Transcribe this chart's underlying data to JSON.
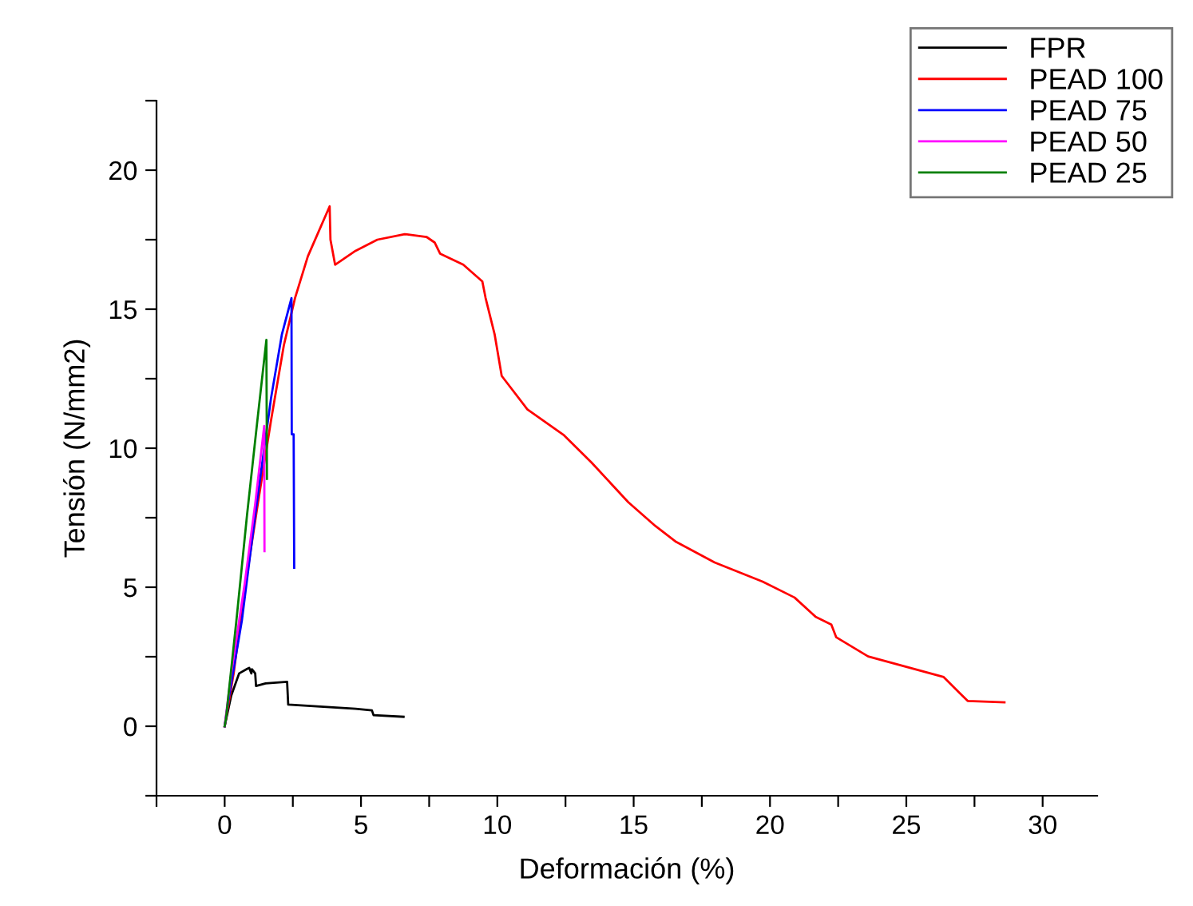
{
  "chart_data": {
    "type": "line",
    "xlabel": "Deformación (%)",
    "ylabel": "Tensión (N/mm2)",
    "xlim": [
      -2.5,
      32
    ],
    "ylim": [
      -2.5,
      22.5
    ],
    "xticks": [
      {
        "value": -2.5,
        "label": null
      },
      0,
      {
        "value": 2.5,
        "label": null
      },
      5,
      {
        "value": 7.5,
        "label": null
      },
      10,
      {
        "value": 12.5,
        "label": null
      },
      15,
      {
        "value": 17.5,
        "label": null
      },
      20,
      {
        "value": 22.5,
        "label": null
      },
      25,
      {
        "value": 27.5,
        "label": null
      },
      30
    ],
    "yticks": [
      {
        "value": -2.5,
        "label": null
      },
      0,
      {
        "value": 2.5,
        "label": null
      },
      5,
      {
        "value": 7.5,
        "label": null
      },
      10,
      {
        "value": 12.5,
        "label": null
      },
      15,
      {
        "value": 17.5,
        "label": null
      },
      20,
      {
        "value": 22.5,
        "label": null
      }
    ],
    "grid": false,
    "legend": "top right",
    "marker": "none",
    "line_style": "solid",
    "series": [
      {
        "name": "FPR",
        "color": "#000000",
        "x": [
          0,
          0.24,
          0.53,
          0.82,
          0.9,
          0.98,
          1.0,
          1.12,
          1.15,
          1.5,
          2.29,
          2.33,
          4.8,
          5.4,
          5.46,
          6.56
        ],
        "values": [
          0,
          1.1,
          1.9,
          2.06,
          2.1,
          1.9,
          2.05,
          1.9,
          1.45,
          1.54,
          1.6,
          0.78,
          0.63,
          0.57,
          0.4,
          0.34
        ]
      },
      {
        "name": "PEAD 100",
        "color": "#ff0000",
        "x": [
          0,
          0.33,
          0.7,
          1.2,
          1.7,
          2.17,
          2.58,
          3.05,
          3.85,
          3.88,
          4.05,
          4.8,
          5.6,
          6.6,
          7.4,
          7.7,
          7.9,
          8.75,
          9.45,
          9.57,
          9.9,
          10.16,
          11.1,
          12.45,
          13.45,
          14.8,
          15.8,
          16.56,
          17.97,
          19.73,
          20.9,
          21.67,
          22.25,
          22.43,
          23.6,
          26.37,
          26.95,
          27.25,
          28.6
        ],
        "values": [
          0,
          1.9,
          4.7,
          7.9,
          11.0,
          13.7,
          15.4,
          16.9,
          18.7,
          17.5,
          16.6,
          17.1,
          17.5,
          17.7,
          17.6,
          17.4,
          17.0,
          16.6,
          16.0,
          15.4,
          14.1,
          12.6,
          11.4,
          10.46,
          9.49,
          8.06,
          7.2,
          6.63,
          5.89,
          5.2,
          4.63,
          3.94,
          3.66,
          3.2,
          2.51,
          1.77,
          1.2,
          0.91,
          0.86
        ]
      },
      {
        "name": "PEAD 75",
        "color": "#0000ff",
        "x": [
          0,
          0.13,
          0.63,
          1.12,
          1.7,
          2.1,
          2.45,
          2.46,
          2.53,
          2.55
        ],
        "values": [
          0,
          0.9,
          3.8,
          7.6,
          11.8,
          14.1,
          15.4,
          10.5,
          10.5,
          5.7
        ]
      },
      {
        "name": "PEAD 50",
        "color": "#ff00ff",
        "x": [
          0,
          0.24,
          0.73,
          1.12,
          1.45,
          1.46
        ],
        "values": [
          0,
          1.9,
          5.1,
          8.0,
          10.8,
          6.3
        ]
      },
      {
        "name": "PEAD 25",
        "color": "#008000",
        "x": [
          0,
          0.05,
          0.43,
          0.82,
          1.2,
          1.53,
          1.55
        ],
        "values": [
          0,
          0.3,
          3.8,
          7.6,
          11.0,
          13.9,
          8.9
        ]
      }
    ]
  }
}
